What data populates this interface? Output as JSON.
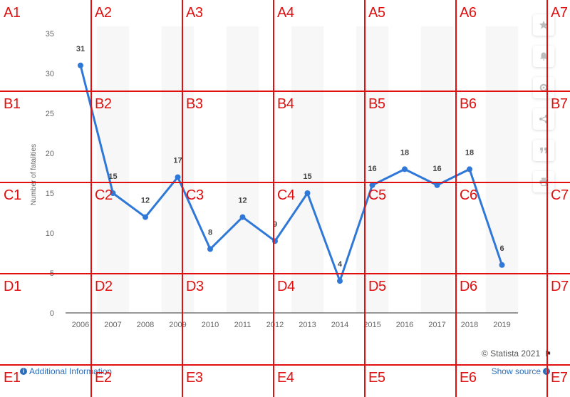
{
  "chart_data": {
    "type": "line",
    "x": [
      "2006",
      "2007",
      "2008",
      "2009",
      "2010",
      "2011",
      "2012",
      "2013",
      "2014",
      "2015",
      "2016",
      "2017",
      "2018",
      "2019"
    ],
    "series": [
      {
        "values": [
          31,
          15,
          12,
          17,
          8,
          12,
          9,
          15,
          4,
          16,
          18,
          16,
          18,
          6
        ]
      }
    ],
    "ylabel": "Number of fatalities",
    "xlabel": "",
    "ylim": [
      0,
      35
    ],
    "yticks": [
      0,
      5,
      10,
      15,
      20,
      25,
      30,
      35
    ],
    "grid": false,
    "legend": "none",
    "line_color": "#2f78d8"
  },
  "footer": {
    "copyright": "© Statista 2021",
    "additional_info": "Additional Information",
    "show_source": "Show source"
  },
  "toolbar": {
    "icons": [
      "star-icon",
      "bell-icon",
      "gear-icon",
      "share-icon",
      "quote-icon",
      "print-icon"
    ]
  },
  "grid_labels": {
    "rows": [
      "A",
      "B",
      "C",
      "D",
      "E"
    ],
    "cols": [
      "1",
      "2",
      "3",
      "4",
      "5",
      "6",
      "7"
    ]
  }
}
